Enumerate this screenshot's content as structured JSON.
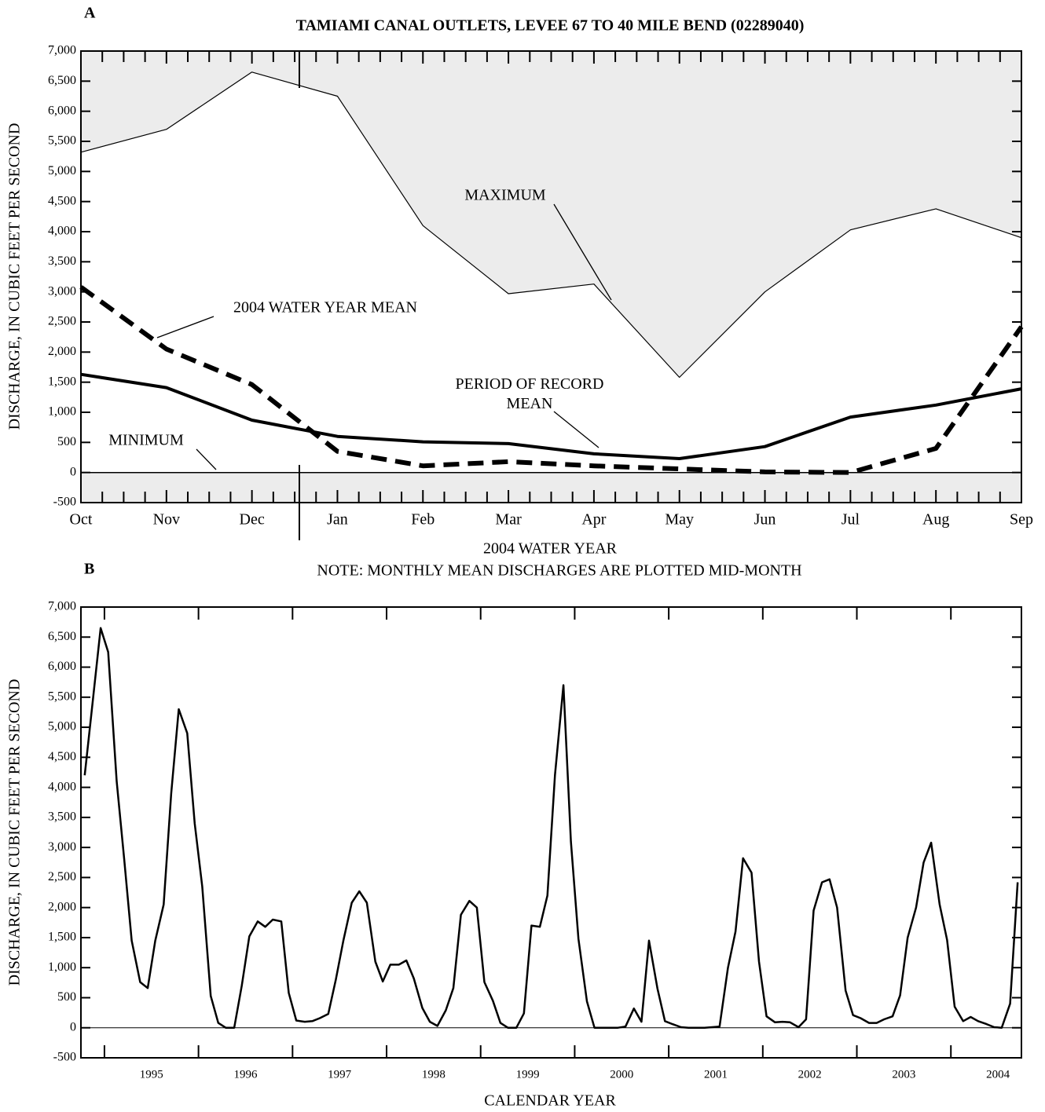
{
  "chart_data": [
    {
      "type": "line",
      "label": "A",
      "title": "TAMIAMI CANAL OUTLETS, LEVEE 67 TO 40 MILE BEND (02289040)",
      "ylabel": "DISCHARGE, IN CUBIC FEET PER SECOND",
      "xlabel": "2004 WATER YEAR",
      "note": "NOTE: MONTHLY MEAN DISCHARGES ARE PLOTTED MID-MONTH",
      "categories": [
        "Oct",
        "Nov",
        "Dec",
        "Jan",
        "Feb",
        "Mar",
        "Apr",
        "May",
        "Jun",
        "Jul",
        "Aug",
        "Sep"
      ],
      "series": [
        {
          "name": "MAXIMUM",
          "color": "#000000",
          "values": [
            5320,
            5700,
            6650,
            6250,
            4100,
            2970,
            3130,
            1580,
            3000,
            4030,
            4380,
            3900
          ]
        },
        {
          "name": "PERIOD OF RECORD MEAN",
          "color": "#000000",
          "values": [
            1630,
            1410,
            870,
            600,
            510,
            480,
            310,
            230,
            430,
            920,
            1120,
            1390
          ]
        },
        {
          "name": "2004 WATER YEAR MEAN",
          "color": "#000000",
          "values": [
            3080,
            2050,
            1460,
            350,
            110,
            180,
            110,
            60,
            10,
            0,
            400,
            2420
          ]
        },
        {
          "name": "MINIMUM",
          "color": "#000000",
          "values": [
            0,
            0,
            0,
            0,
            0,
            0,
            0,
            0,
            0,
            0,
            0,
            0
          ]
        }
      ],
      "shade_color": "#ececec",
      "ylim": [
        -500,
        7000
      ],
      "yticks": [
        -500,
        0,
        500,
        {
          "value": 1000,
          "label": "1,000"
        },
        {
          "value": 1500,
          "label": "1,500"
        },
        {
          "value": 2000,
          "label": "2,000"
        },
        {
          "value": 2500,
          "label": "2,500"
        },
        {
          "value": 3000,
          "label": "3,000"
        },
        {
          "value": 3500,
          "label": "3,500"
        },
        {
          "value": 4000,
          "label": "4,000"
        },
        {
          "value": 4500,
          "label": "4,500"
        },
        {
          "value": 5000,
          "label": "5,000"
        },
        {
          "value": 5500,
          "label": "5,500"
        },
        {
          "value": 6000,
          "label": "6,000"
        },
        {
          "value": 6500,
          "label": "6,500"
        },
        {
          "value": 7000,
          "label": "7,000"
        }
      ]
    },
    {
      "type": "line",
      "label": "B",
      "ylabel": "DISCHARGE, IN CUBIC FEET PER SECOND",
      "xlabel": "CALENDAR YEAR",
      "color": "#000000",
      "x": [
        1994.79,
        1994.88,
        1994.96,
        1995.04,
        1995.13,
        1995.21,
        1995.29,
        1995.38,
        1995.46,
        1995.54,
        1995.63,
        1995.71,
        1995.79,
        1995.88,
        1995.96,
        1996.04,
        1996.13,
        1996.21,
        1996.29,
        1996.38,
        1996.46,
        1996.54,
        1996.63,
        1996.71,
        1996.79,
        1996.88,
        1996.96,
        1997.04,
        1997.13,
        1997.21,
        1997.29,
        1997.38,
        1997.46,
        1997.54,
        1997.63,
        1997.71,
        1997.79,
        1997.88,
        1997.96,
        1998.04,
        1998.13,
        1998.21,
        1998.29,
        1998.38,
        1998.46,
        1998.54,
        1998.63,
        1998.71,
        1998.79,
        1998.88,
        1998.96,
        1999.04,
        1999.13,
        1999.21,
        1999.29,
        1999.38,
        1999.46,
        1999.54,
        1999.63,
        1999.71,
        1999.79,
        1999.88,
        1999.96,
        2000.04,
        2000.13,
        2000.21,
        2000.29,
        2000.38,
        2000.46,
        2000.54,
        2000.63,
        2000.71,
        2000.79,
        2000.88,
        2000.96,
        2001.04,
        2001.13,
        2001.21,
        2001.29,
        2001.38,
        2001.46,
        2001.54,
        2001.63,
        2001.71,
        2001.79,
        2001.88,
        2001.96,
        2002.04,
        2002.13,
        2002.21,
        2002.29,
        2002.38,
        2002.46,
        2002.54,
        2002.63,
        2002.71,
        2002.79,
        2002.88,
        2002.96,
        2003.04,
        2003.13,
        2003.21,
        2003.29,
        2003.38,
        2003.46,
        2003.54,
        2003.63,
        2003.71,
        2003.79,
        2003.88,
        2003.96,
        2004.04,
        2004.13,
        2004.21,
        2004.29,
        2004.38,
        2004.46,
        2004.54,
        2004.63,
        2004.71
      ],
      "values": [
        4200,
        5500,
        6650,
        6250,
        4100,
        2800,
        1450,
        760,
        660,
        1450,
        2050,
        3900,
        5300,
        4900,
        3400,
        2350,
        530,
        80,
        0,
        0,
        700,
        1520,
        1770,
        1680,
        1800,
        1770,
        580,
        120,
        100,
        110,
        160,
        230,
        800,
        1450,
        2080,
        2270,
        2080,
        1100,
        770,
        1050,
        1050,
        1120,
        820,
        330,
        100,
        30,
        290,
        660,
        1880,
        2110,
        2000,
        760,
        450,
        80,
        0,
        0,
        240,
        1700,
        1680,
        2200,
        4200,
        5700,
        3100,
        1480,
        440,
        0,
        0,
        0,
        0,
        20,
        320,
        100,
        1450,
        650,
        110,
        60,
        10,
        0,
        0,
        0,
        10,
        20,
        1000,
        1600,
        2820,
        2580,
        1100,
        190,
        90,
        100,
        90,
        10,
        140,
        1950,
        2420,
        2470,
        2000,
        620,
        210,
        160,
        80,
        80,
        140,
        190,
        540,
        1500,
        2000,
        2750,
        3080,
        2050,
        1460,
        350,
        110,
        180,
        110,
        60,
        10,
        0,
        400,
        2420
      ],
      "xlim": [
        1994.75,
        2004.75
      ],
      "xticks": [
        1995,
        1996,
        1997,
        1998,
        1999,
        2000,
        2001,
        2002,
        2003,
        2004
      ],
      "ylim": [
        -500,
        7000
      ],
      "yticks": [
        -500,
        0,
        500,
        {
          "value": 1000,
          "label": "1,000"
        },
        {
          "value": 1500,
          "label": "1,500"
        },
        {
          "value": 2000,
          "label": "2,000"
        },
        {
          "value": 2500,
          "label": "2,500"
        },
        {
          "value": 3000,
          "label": "3,000"
        },
        {
          "value": 3500,
          "label": "3,500"
        },
        {
          "value": 4000,
          "label": "4,000"
        },
        {
          "value": 4500,
          "label": "4,500"
        },
        {
          "value": 5000,
          "label": "5,000"
        },
        {
          "value": 5500,
          "label": "5,500"
        },
        {
          "value": 6000,
          "label": "6,000"
        },
        {
          "value": 6500,
          "label": "6,500"
        },
        {
          "value": 7000,
          "label": "7,000"
        }
      ]
    }
  ]
}
